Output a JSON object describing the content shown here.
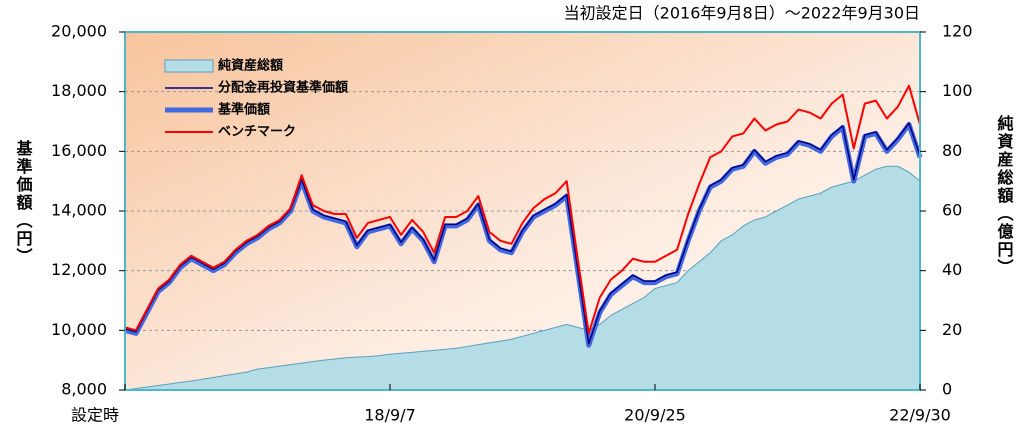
{
  "chart_data": {
    "type": "line",
    "title": "当初設定日（2016年9月8日）～2022年9月30日",
    "ylabel": "基準価額（円）",
    "y2label": "純資産総額（億円）",
    "categories": [
      "設定時",
      null,
      null,
      null,
      null,
      null,
      null,
      null,
      null,
      null,
      null,
      null,
      null,
      null,
      null,
      null,
      null,
      null,
      null,
      null,
      null,
      null,
      null,
      null,
      "18/9/7",
      null,
      null,
      null,
      null,
      null,
      null,
      null,
      null,
      null,
      null,
      null,
      null,
      null,
      null,
      null,
      null,
      null,
      null,
      null,
      null,
      null,
      null,
      null,
      "20/9/25",
      null,
      null,
      null,
      null,
      null,
      null,
      null,
      null,
      null,
      null,
      null,
      null,
      null,
      null,
      null,
      null,
      null,
      null,
      null,
      null,
      null,
      null,
      null,
      "22/9/30"
    ],
    "ylim": [
      8000,
      20000
    ],
    "yticks": [
      {
        "value": 8000,
        "label": "8,000"
      },
      {
        "value": 10000,
        "label": "10,000"
      },
      {
        "value": 12000,
        "label": "12,000"
      },
      {
        "value": 14000,
        "label": "14,000"
      },
      {
        "value": 16000,
        "label": "16,000"
      },
      {
        "value": 18000,
        "label": "18,000"
      },
      {
        "value": 20000,
        "label": "20,000"
      }
    ],
    "y2lim": [
      0,
      120
    ],
    "y2ticks": [
      0,
      20,
      40,
      60,
      80,
      100,
      120
    ],
    "grid": true,
    "legend": "upper-left",
    "series": [
      {
        "name": "純資産総額",
        "style": "area",
        "axis": "y2",
        "color": "#b4dde6",
        "values": [
          0,
          0.5,
          1,
          1.5,
          2,
          2.5,
          3,
          3.6,
          4.2,
          4.8,
          5.4,
          6,
          7,
          7.5,
          8,
          8.5,
          9,
          9.5,
          10,
          10.4,
          10.8,
          11,
          11.2,
          11.5,
          12,
          12.3,
          12.6,
          13,
          13.3,
          13.6,
          14,
          14.6,
          15.2,
          15.8,
          16.4,
          17,
          18,
          19,
          20,
          21,
          22,
          21,
          20,
          22,
          25,
          27,
          29,
          31,
          34,
          35,
          36,
          40,
          43,
          46,
          50,
          52,
          55,
          57,
          58,
          60,
          62,
          64,
          65,
          66,
          68,
          69,
          70,
          72,
          74,
          75,
          75,
          73,
          70
        ]
      },
      {
        "name": "分配金再投資基準価額",
        "style": "line",
        "width": 1.5,
        "color": "#000080",
        "values": [
          10050,
          9950,
          10650,
          11350,
          11650,
          12150,
          12450,
          12250,
          12050,
          12250,
          12650,
          12950,
          13150,
          13450,
          13650,
          14050,
          15050,
          14050,
          13850,
          13750,
          13650,
          12850,
          13350,
          13450,
          13550,
          12950,
          13450,
          13050,
          12350,
          13550,
          13550,
          13750,
          14250,
          13050,
          12750,
          12650,
          13350,
          13850,
          14050,
          14250,
          14550,
          12050,
          9550,
          10650,
          11250,
          11550,
          11850,
          11650,
          11650,
          11850,
          11950,
          13050,
          14050,
          14850,
          15050,
          15450,
          15550,
          16050,
          15650,
          15850,
          15950,
          16350,
          16250,
          16050,
          16550,
          16850,
          15050,
          16550,
          16650,
          16050,
          16450,
          16950,
          15850
        ]
      },
      {
        "name": "基準価額",
        "style": "line",
        "width": 5,
        "color": "#4169e1",
        "values": [
          10000,
          9900,
          10600,
          11300,
          11600,
          12100,
          12400,
          12200,
          12000,
          12200,
          12600,
          12900,
          13100,
          13400,
          13600,
          14000,
          15000,
          14000,
          13800,
          13700,
          13600,
          12800,
          13300,
          13400,
          13500,
          12900,
          13400,
          13000,
          12300,
          13500,
          13500,
          13700,
          14200,
          13000,
          12700,
          12600,
          13300,
          13800,
          14000,
          14200,
          14500,
          12000,
          9500,
          10600,
          11200,
          11500,
          11800,
          11600,
          11600,
          11800,
          11900,
          13000,
          14000,
          14800,
          15000,
          15400,
          15500,
          16000,
          15600,
          15800,
          15900,
          16300,
          16200,
          16000,
          16500,
          16800,
          15000,
          16500,
          16600,
          16000,
          16400,
          16900,
          15800
        ]
      },
      {
        "name": "ベンチマーク",
        "style": "line",
        "width": 2,
        "color": "#ff0000",
        "values": [
          10100,
          10000,
          10700,
          11400,
          11700,
          12200,
          12500,
          12300,
          12100,
          12300,
          12700,
          13000,
          13200,
          13500,
          13700,
          14100,
          15200,
          14200,
          14000,
          13900,
          13900,
          13100,
          13600,
          13700,
          13800,
          13200,
          13700,
          13300,
          12600,
          13800,
          13800,
          14000,
          14500,
          13300,
          13000,
          12900,
          13600,
          14100,
          14400,
          14600,
          15000,
          12400,
          9900,
          11100,
          11700,
          12000,
          12400,
          12300,
          12300,
          12500,
          12700,
          13900,
          14900,
          15800,
          16000,
          16500,
          16600,
          17100,
          16700,
          16900,
          17000,
          17400,
          17300,
          17100,
          17600,
          17900,
          16100,
          17600,
          17700,
          17100,
          17500,
          18200,
          16900
        ]
      }
    ]
  }
}
